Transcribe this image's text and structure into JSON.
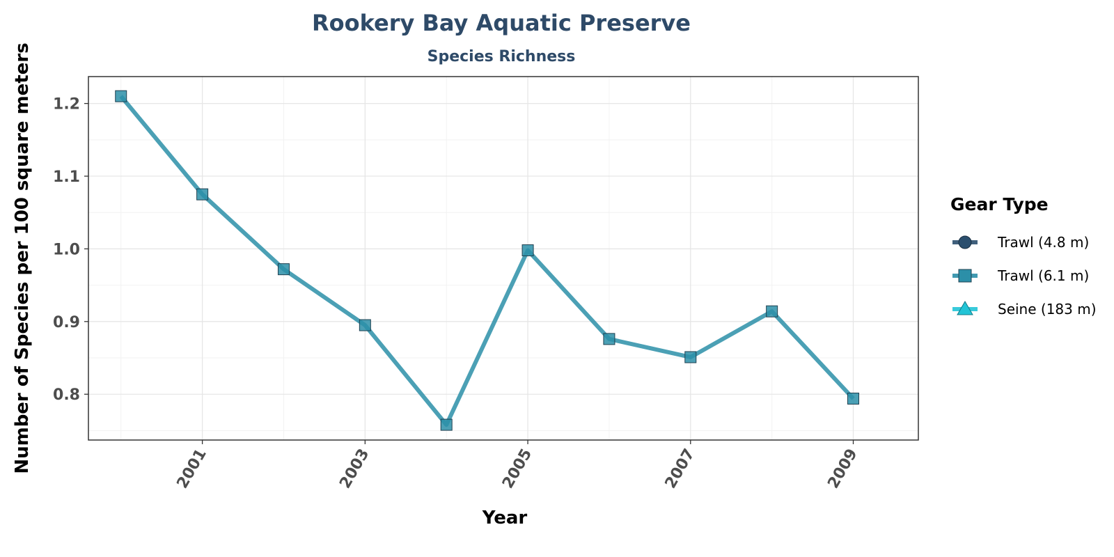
{
  "chart_data": {
    "type": "line",
    "title": "Rookery Bay Aquatic Preserve",
    "subtitle": "Species Richness",
    "xlabel": "Year",
    "ylabel": "Number of Species per 100 square meters",
    "x": [
      2000,
      2001,
      2002,
      2003,
      2004,
      2005,
      2006,
      2007,
      2008,
      2009
    ],
    "xlim": [
      1999.6,
      2009.8
    ],
    "ylim": [
      0.737,
      1.237
    ],
    "x_ticks": [
      "2001",
      "2003",
      "2005",
      "2007",
      "2009"
    ],
    "y_ticks": [
      "0.8",
      "0.9",
      "1.0",
      "1.1",
      "1.2"
    ],
    "grid": true,
    "legend": {
      "title": "Gear Type",
      "position": "right",
      "entries": [
        {
          "label": "Trawl (4.8 m)",
          "marker": "circle",
          "color": "#2b4f6e"
        },
        {
          "label": "Trawl (6.1 m)",
          "marker": "square",
          "color": "#2c8fa8"
        },
        {
          "label": "Seine (183 m)",
          "marker": "triangle",
          "color": "#22c4d6"
        }
      ]
    },
    "series": [
      {
        "name": "Trawl (6.1 m)",
        "marker": "square",
        "color": "#2c8fa8",
        "values": [
          1.21,
          1.075,
          0.972,
          0.895,
          0.758,
          0.998,
          0.876,
          0.851,
          0.914,
          0.794
        ]
      }
    ]
  }
}
